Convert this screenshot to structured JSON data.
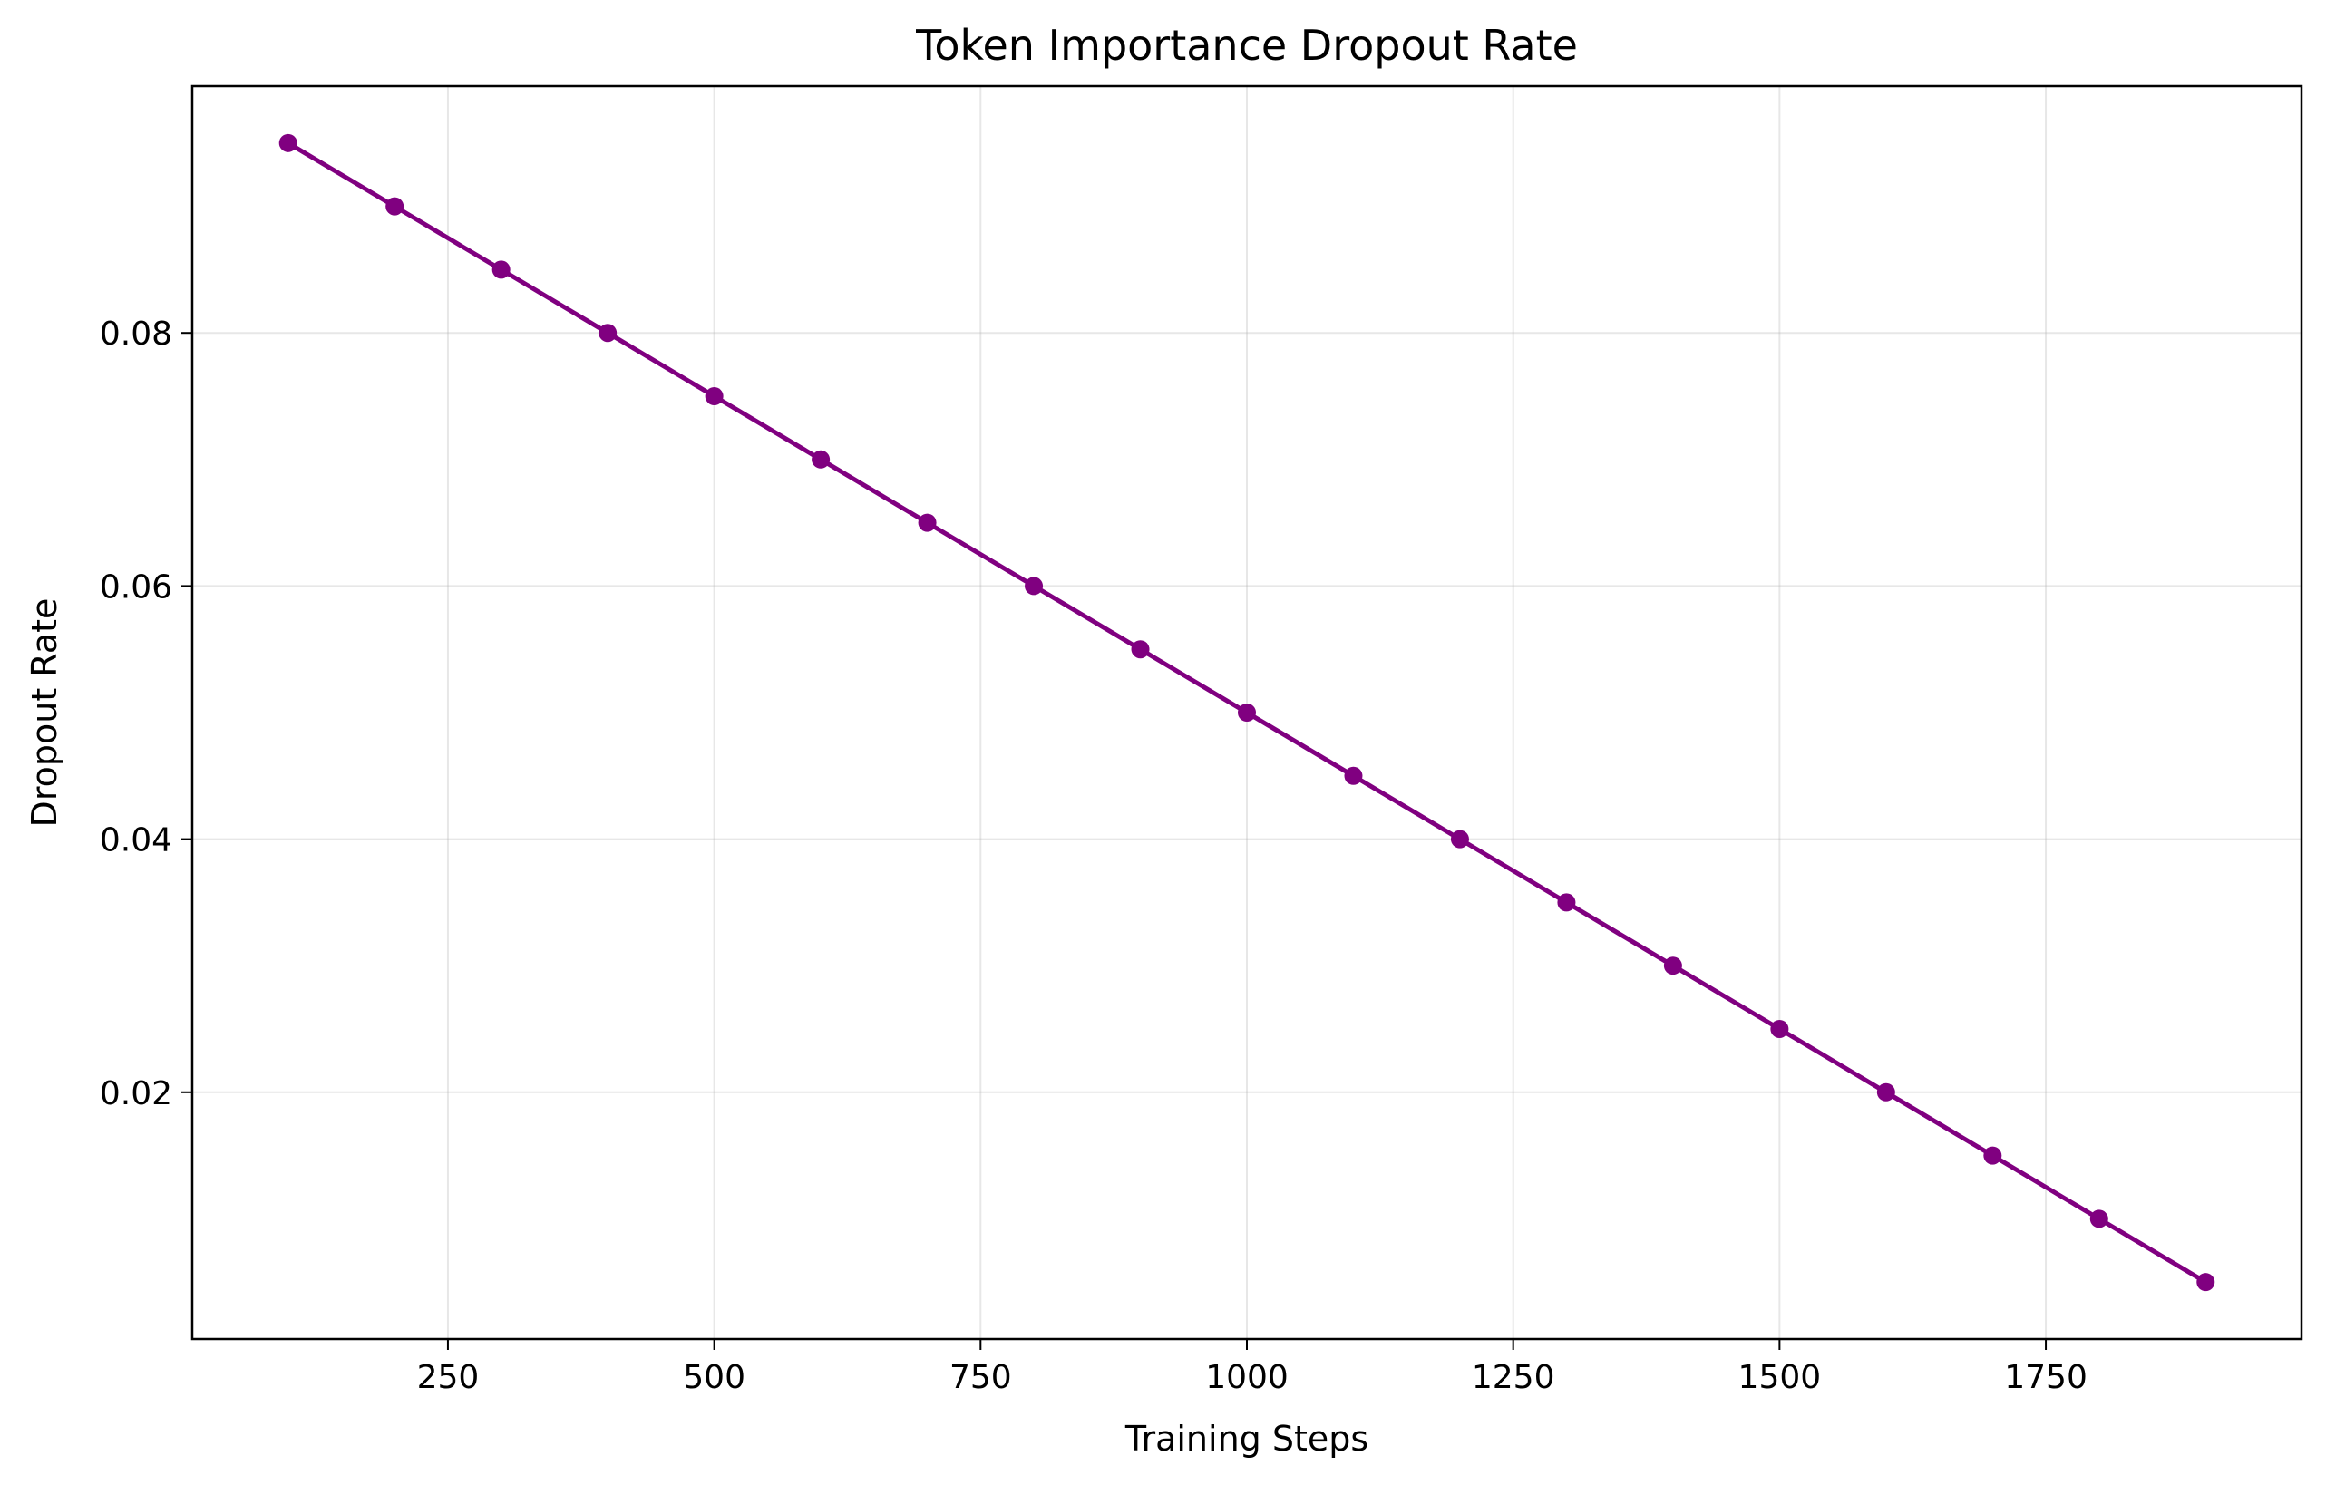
{
  "chart_data": {
    "type": "line",
    "title": "Token Importance Dropout Rate",
    "xlabel": "Training Steps",
    "ylabel": "Dropout Rate",
    "x": [
      100,
      200,
      300,
      400,
      500,
      600,
      700,
      800,
      900,
      1000,
      1100,
      1200,
      1300,
      1400,
      1500,
      1600,
      1700,
      1800,
      1900
    ],
    "series": [
      {
        "values": [
          0.095,
          0.09,
          0.085,
          0.08,
          0.075,
          0.07,
          0.065,
          0.06,
          0.055,
          0.05,
          0.045,
          0.04,
          0.035,
          0.03,
          0.025,
          0.02,
          0.015,
          0.01,
          0.005
        ],
        "color": "#800080",
        "marker": "circle"
      }
    ],
    "xlim": [
      10,
      1990
    ],
    "ylim": [
      0.0005,
      0.0995
    ],
    "xticks": [
      250,
      500,
      750,
      1000,
      1250,
      1500,
      1750
    ],
    "xtick_labels": [
      "250",
      "500",
      "750",
      "1000",
      "1250",
      "1500",
      "1750"
    ],
    "yticks": [
      0.02,
      0.04,
      0.06,
      0.08
    ],
    "ytick_labels": [
      "0.02",
      "0.04",
      "0.06",
      "0.08"
    ],
    "grid": true,
    "legend": "none"
  }
}
